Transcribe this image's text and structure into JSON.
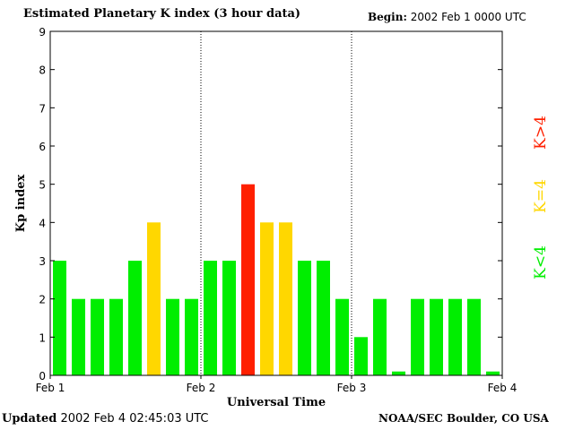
{
  "header": {
    "title": "Estimated Planetary K index (3 hour data)",
    "begin_label": "Begin:",
    "begin_value": "2002 Feb 1 0000 UTC"
  },
  "footer": {
    "updated_label": "Updated",
    "updated_value": "2002 Feb  4 02:45:03 UTC",
    "source": "NOAA/SEC Boulder, CO USA"
  },
  "chart_data": {
    "type": "bar",
    "title": "Estimated Planetary K index (3 hour data)",
    "xlabel": "Universal Time",
    "ylabel": "Kp index",
    "ylim": [
      0,
      9
    ],
    "y_ticks": [
      "0",
      "1",
      "2",
      "3",
      "4",
      "5",
      "6",
      "7",
      "8",
      "9"
    ],
    "x_ticks": [
      "Feb 1",
      "Feb 2",
      "Feb 3",
      "Feb 4"
    ],
    "day_dividers": [
      "Feb 2",
      "Feb 3"
    ],
    "values": [
      3,
      2,
      2,
      2,
      3,
      4,
      2,
      2,
      3,
      3,
      5,
      4,
      4,
      3,
      3,
      2,
      1,
      2,
      0.1,
      2,
      2,
      2,
      2,
      0.1
    ],
    "colors": {
      "below": "#00ee00",
      "equal": "#ffd700",
      "above": "#ff2000"
    },
    "legend": {
      "below": "K<4",
      "equal": "K=4",
      "above": "K>4"
    }
  }
}
